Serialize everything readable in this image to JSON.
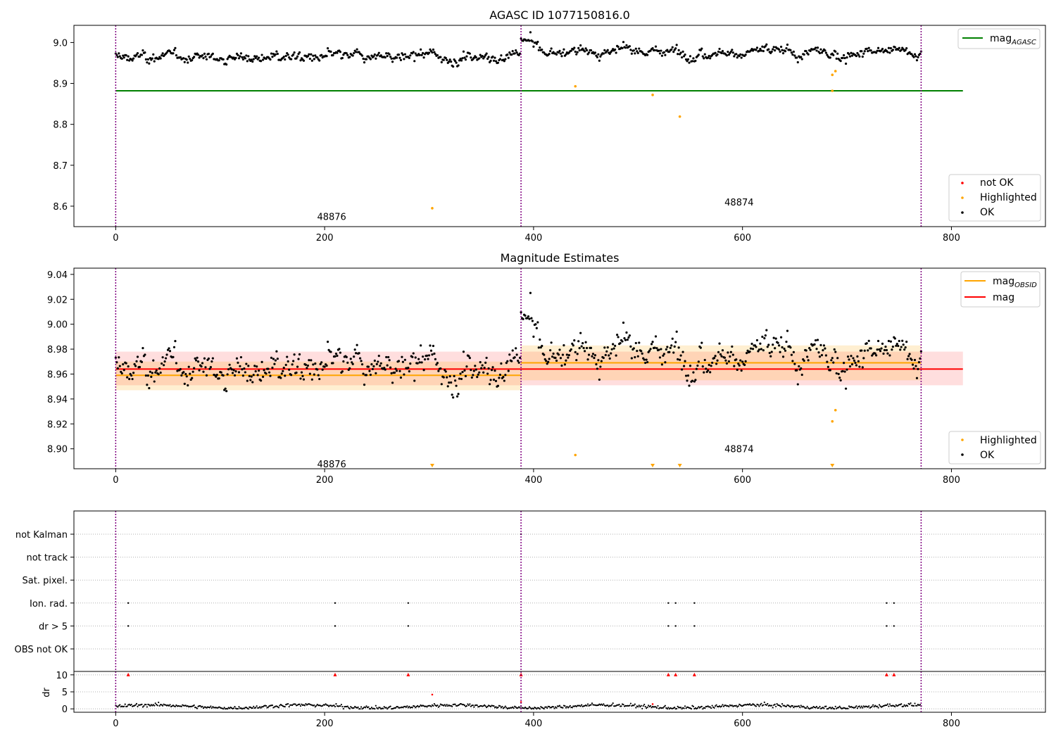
{
  "figure": {
    "background": "#ffffff"
  },
  "chart_data": [
    {
      "type": "scatter",
      "title": "AGASC ID 1077150816.0",
      "xlabel": "",
      "ylabel": "",
      "xlim": [
        -40,
        890
      ],
      "ylim": [
        8.55,
        9.042
      ],
      "x_ticks": [
        0,
        200,
        400,
        600,
        800
      ],
      "y_ticks": [
        8.6,
        8.7,
        8.8,
        8.9,
        9.0
      ],
      "y_tick_labels": [
        "8.6",
        "8.7",
        "8.8",
        "8.9",
        "9.0"
      ],
      "grid": false,
      "segments": [
        {
          "start": 0,
          "end": 388,
          "mean": 8.958,
          "label": "48876",
          "label_x": 200,
          "label_y": 8.575
        },
        {
          "start": 388,
          "end": 771,
          "mean": 8.972,
          "label": "48874",
          "label_x": 590,
          "label_y": 8.61
        }
      ],
      "obsid_boundaries": [
        0,
        388,
        771
      ],
      "lines": [
        {
          "name": "mag_AGASC",
          "label_base": "mag",
          "label_sub": "AGASC",
          "y": 8.882,
          "x_range": [
            0,
            811
          ],
          "color": "#008000"
        }
      ],
      "highlighted_points": [
        [
          303,
          8.595
        ],
        [
          440,
          8.893
        ],
        [
          514,
          8.872
        ],
        [
          540,
          8.819
        ],
        [
          686,
          8.921
        ],
        [
          689,
          8.93
        ],
        [
          686,
          8.882
        ]
      ],
      "series": [
        {
          "name": "not OK",
          "color": "#ff0000"
        },
        {
          "name": "Highlighted",
          "color": "#ffa500"
        },
        {
          "name": "OK",
          "color": "#000000"
        }
      ],
      "legend_top": {
        "position": "upper right",
        "entries": [
          "mag_AGASC"
        ]
      },
      "legend_bottom": {
        "position": "lower right",
        "entries": [
          "not OK",
          "Highlighted",
          "OK"
        ]
      }
    },
    {
      "type": "scatter",
      "title": "Magnitude Estimates",
      "xlabel": "",
      "ylabel": "",
      "xlim": [
        -40,
        890
      ],
      "ylim": [
        8.884,
        9.045
      ],
      "x_ticks": [
        0,
        200,
        400,
        600,
        800
      ],
      "y_ticks": [
        8.9,
        8.92,
        8.94,
        8.96,
        8.98,
        9.0,
        9.02,
        9.04
      ],
      "y_tick_labels": [
        "8.90",
        "8.92",
        "8.94",
        "8.96",
        "8.98",
        "9.00",
        "9.02",
        "9.04"
      ],
      "grid": false,
      "segments": [
        {
          "start": 0,
          "end": 388,
          "mean": 8.959,
          "band": [
            8.947,
            8.97
          ],
          "label": "48876",
          "label_x": 200,
          "label_y": 8.888
        },
        {
          "start": 388,
          "end": 771,
          "mean": 8.969,
          "band": [
            8.955,
            8.983
          ],
          "label": "48874",
          "label_x": 590,
          "label_y": 8.9
        }
      ],
      "obsid_boundaries": [
        0,
        388,
        771
      ],
      "lines": [
        {
          "name": "mag_OBSID",
          "label_base": "mag",
          "label_sub": "OBSID",
          "color": "#ffa500",
          "by_segment": [
            8.959,
            8.969
          ]
        },
        {
          "name": "mag",
          "label_base": "mag",
          "label_sub": "",
          "color": "#ff0000",
          "y": 8.964,
          "x_range": [
            0,
            811
          ],
          "band": [
            8.951,
            8.978
          ]
        }
      ],
      "highlighted_points": [
        [
          440,
          8.895
        ],
        [
          686,
          8.922
        ],
        [
          689,
          8.931
        ]
      ],
      "clipped_markers_x": [
        303,
        514,
        540,
        686
      ],
      "series": [
        {
          "name": "Highlighted",
          "color": "#ffa500"
        },
        {
          "name": "OK",
          "color": "#000000"
        }
      ],
      "legend_top": {
        "position": "upper right",
        "entries": [
          "mag_OBSID",
          "mag"
        ]
      },
      "legend_bottom": {
        "position": "lower right",
        "entries": [
          "Highlighted",
          "OK"
        ]
      }
    },
    {
      "type": "scatter",
      "title": "",
      "xlim": [
        -40,
        890
      ],
      "x_ticks": [
        0,
        200,
        400,
        600,
        800
      ],
      "grid": true,
      "flags": [
        {
          "label": "not Kalman",
          "x": [
            388
          ]
        },
        {
          "label": "not track",
          "x": []
        },
        {
          "label": "Sat. pixel.",
          "x": []
        },
        {
          "label": "Ion. rad.",
          "x": [
            12,
            210,
            280,
            529,
            536,
            554,
            738,
            745
          ]
        },
        {
          "label": "dr > 5",
          "x": [
            12,
            210,
            280,
            529,
            536,
            554,
            738,
            745
          ]
        },
        {
          "label": "OBS not OK",
          "x": []
        }
      ],
      "dr_panel": {
        "ylabel": "dr",
        "ylim": [
          -1,
          11
        ],
        "y_ticks": [
          0,
          5,
          10
        ],
        "y_tick_labels": [
          "0",
          "5",
          "10"
        ],
        "clipped_x": [
          12,
          210,
          280,
          388,
          529,
          536,
          554,
          738,
          745
        ],
        "extra_points": [
          [
            303,
            4.2
          ],
          [
            388,
            2.0
          ],
          [
            514,
            1.4
          ]
        ]
      },
      "obsid_boundaries": [
        0,
        388,
        771
      ]
    }
  ]
}
